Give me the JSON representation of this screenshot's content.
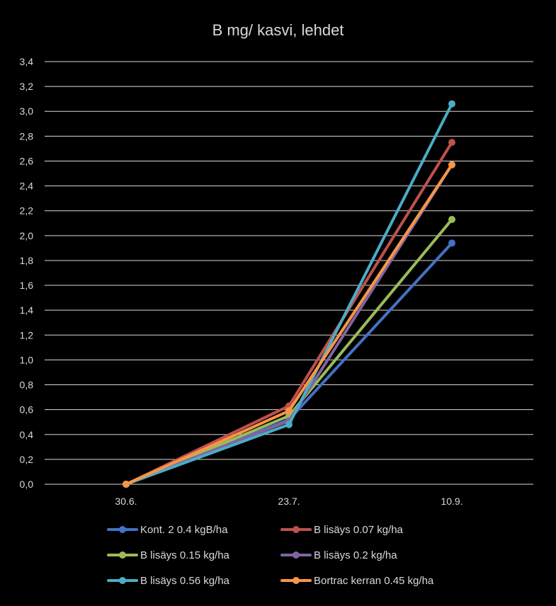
{
  "chart_data": {
    "type": "line",
    "title": "B mg/ kasvi, lehdet",
    "xlabel": "",
    "ylabel": "",
    "categories": [
      "30.6.",
      "23.7.",
      "10.9."
    ],
    "ylim": [
      0,
      3.4
    ],
    "ytick_step": 0.2,
    "ytick_labels": [
      "0,0",
      "0,2",
      "0,4",
      "0,6",
      "0,8",
      "1,0",
      "1,2",
      "1,4",
      "1,6",
      "1,8",
      "2,0",
      "2,2",
      "2,4",
      "2,6",
      "2,8",
      "3,0",
      "3,2",
      "3,4"
    ],
    "grid": true,
    "legend_position": "bottom",
    "series": [
      {
        "name": "Kont. 2  0.4 kgB/ha",
        "color": "#4472c4",
        "values": [
          0.0,
          0.52,
          1.94
        ]
      },
      {
        "name": "B lisäys 0.07 kg/ha",
        "color": "#c0504d",
        "values": [
          0.0,
          0.63,
          2.75
        ]
      },
      {
        "name": "B lisäys 0.15 kg/ha",
        "color": "#9bbb59",
        "values": [
          0.0,
          0.55,
          2.13
        ]
      },
      {
        "name": "B lisäys 0.2 kg/ha",
        "color": "#8064a2",
        "values": [
          0.0,
          0.51,
          2.57
        ]
      },
      {
        "name": "B lisäys 0.56 kg/ha",
        "color": "#4bacc6",
        "values": [
          0.0,
          0.48,
          3.06
        ]
      },
      {
        "name": "Bortrac kerran 0.45 kg/ha",
        "color": "#f79646",
        "values": [
          0.0,
          0.59,
          2.57
        ]
      }
    ]
  }
}
